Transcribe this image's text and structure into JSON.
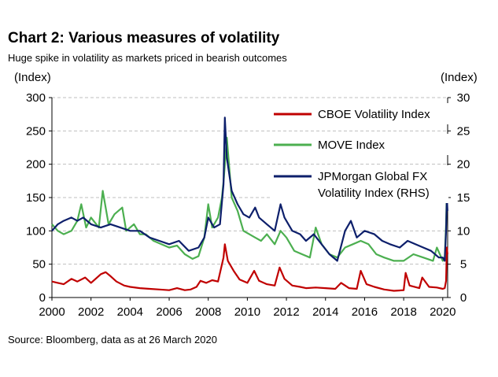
{
  "title": "Chart 2: Various measures of volatility",
  "subtitle": "Huge spike in volatility as markets priced in bearish outcomes",
  "source": "Source: Bloomberg, data as at 26 March 2020",
  "chart_data": {
    "type": "line",
    "left_unit": "(Index)",
    "right_unit": "(Index)",
    "x_ticks": [
      "2000",
      "2002",
      "2004",
      "2006",
      "2008",
      "2010",
      "2012",
      "2014",
      "2016",
      "2018",
      "2020"
    ],
    "xlim": [
      2000,
      2020.25
    ],
    "y_left": {
      "lim": [
        0,
        300
      ],
      "ticks": [
        "0",
        "50",
        "100",
        "150",
        "200",
        "250",
        "300"
      ]
    },
    "y_right": {
      "lim": [
        0,
        30
      ],
      "ticks": [
        "0",
        "5",
        "10",
        "15",
        "20",
        "25",
        "30"
      ]
    },
    "grid": "horizontal dashed",
    "legend_position": "top-right",
    "series": [
      {
        "name": "CBOE Volatility Index",
        "axis": "left",
        "color": "#c00000",
        "x": [
          2000.0,
          2000.3,
          2000.6,
          2001.0,
          2001.3,
          2001.7,
          2002.0,
          2002.5,
          2002.75,
          2003.0,
          2003.3,
          2003.7,
          2004.0,
          2004.5,
          2005.0,
          2005.5,
          2006.0,
          2006.4,
          2006.8,
          2007.1,
          2007.4,
          2007.6,
          2007.9,
          2008.2,
          2008.5,
          2008.78,
          2008.85,
          2009.0,
          2009.3,
          2009.6,
          2010.0,
          2010.35,
          2010.6,
          2011.0,
          2011.4,
          2011.65,
          2011.9,
          2012.3,
          2012.7,
          2013.0,
          2013.5,
          2014.0,
          2014.5,
          2014.8,
          2015.2,
          2015.6,
          2015.8,
          2016.1,
          2016.5,
          2017.0,
          2017.5,
          2018.0,
          2018.1,
          2018.3,
          2018.8,
          2018.95,
          2019.3,
          2019.7,
          2020.0,
          2020.1,
          2020.17,
          2020.21,
          2020.24
        ],
        "values": [
          24,
          22,
          20,
          28,
          24,
          30,
          22,
          35,
          38,
          32,
          24,
          18,
          16,
          14,
          13,
          12,
          11,
          14,
          11,
          12,
          16,
          25,
          22,
          26,
          24,
          60,
          80,
          55,
          40,
          27,
          22,
          40,
          25,
          20,
          18,
          45,
          28,
          18,
          16,
          14,
          15,
          14,
          13,
          22,
          14,
          13,
          40,
          20,
          16,
          12,
          10,
          11,
          37,
          18,
          14,
          30,
          16,
          15,
          13,
          14,
          25,
          75,
          65
        ]
      },
      {
        "name": "MOVE Index",
        "axis": "left",
        "color": "#4caf50",
        "x": [
          2000.0,
          2000.3,
          2000.6,
          2001.0,
          2001.3,
          2001.5,
          2001.75,
          2002.0,
          2002.4,
          2002.6,
          2002.9,
          2003.2,
          2003.6,
          2003.8,
          2004.2,
          2004.5,
          2004.8,
          2005.2,
          2005.6,
          2006.0,
          2006.4,
          2006.8,
          2007.2,
          2007.5,
          2007.8,
          2008.0,
          2008.2,
          2008.5,
          2008.7,
          2008.8,
          2008.95,
          2009.2,
          2009.5,
          2009.8,
          2010.1,
          2010.4,
          2010.7,
          2011.0,
          2011.4,
          2011.7,
          2012.0,
          2012.4,
          2012.8,
          2013.2,
          2013.5,
          2013.8,
          2014.2,
          2014.6,
          2015.0,
          2015.4,
          2015.8,
          2016.2,
          2016.6,
          2017.0,
          2017.5,
          2018.0,
          2018.5,
          2019.0,
          2019.5,
          2019.7,
          2020.0,
          2020.1,
          2020.17,
          2020.21,
          2020.24
        ],
        "values": [
          110,
          100,
          95,
          100,
          115,
          140,
          105,
          120,
          105,
          160,
          110,
          125,
          135,
          100,
          110,
          95,
          95,
          85,
          80,
          75,
          78,
          65,
          58,
          62,
          90,
          140,
          105,
          120,
          150,
          180,
          240,
          150,
          130,
          100,
          95,
          90,
          85,
          95,
          80,
          100,
          90,
          70,
          65,
          60,
          105,
          80,
          65,
          60,
          75,
          80,
          85,
          80,
          65,
          60,
          55,
          55,
          65,
          60,
          55,
          75,
          55,
          60,
          110,
          165,
          145
        ]
      },
      {
        "name": "JPMorgan Global FX Volatility Index (RHS)",
        "axis": "right",
        "color": "#0d1f6b",
        "x": [
          2000.0,
          2000.3,
          2000.6,
          2001.0,
          2001.3,
          2001.6,
          2002.0,
          2002.5,
          2003.0,
          2003.5,
          2004.0,
          2004.5,
          2005.0,
          2005.5,
          2006.0,
          2006.5,
          2007.0,
          2007.5,
          2007.8,
          2008.0,
          2008.3,
          2008.6,
          2008.78,
          2008.85,
          2008.95,
          2009.2,
          2009.5,
          2009.8,
          2010.1,
          2010.4,
          2010.6,
          2011.0,
          2011.4,
          2011.7,
          2011.9,
          2012.3,
          2012.7,
          2013.0,
          2013.4,
          2013.8,
          2014.2,
          2014.6,
          2015.0,
          2015.3,
          2015.6,
          2016.0,
          2016.5,
          2016.9,
          2017.3,
          2017.8,
          2018.2,
          2018.6,
          2019.0,
          2019.4,
          2019.8,
          2020.0,
          2020.1,
          2020.17,
          2020.21,
          2020.24
        ],
        "values": [
          10,
          11,
          11.5,
          12,
          11.5,
          12,
          11,
          10.5,
          11,
          10.5,
          10,
          10,
          9,
          8.5,
          8,
          8.5,
          7,
          7.5,
          9,
          12,
          10.5,
          11,
          17,
          27,
          21,
          16,
          14,
          12.5,
          12,
          13.5,
          12,
          11,
          10,
          14,
          12,
          10,
          9.5,
          8.5,
          9.5,
          8,
          6.5,
          5.5,
          10,
          11.5,
          9,
          10,
          9.5,
          8.5,
          8,
          7.5,
          8.5,
          8,
          7.5,
          7,
          6,
          6,
          5.5,
          10,
          15,
          13
        ]
      }
    ]
  }
}
